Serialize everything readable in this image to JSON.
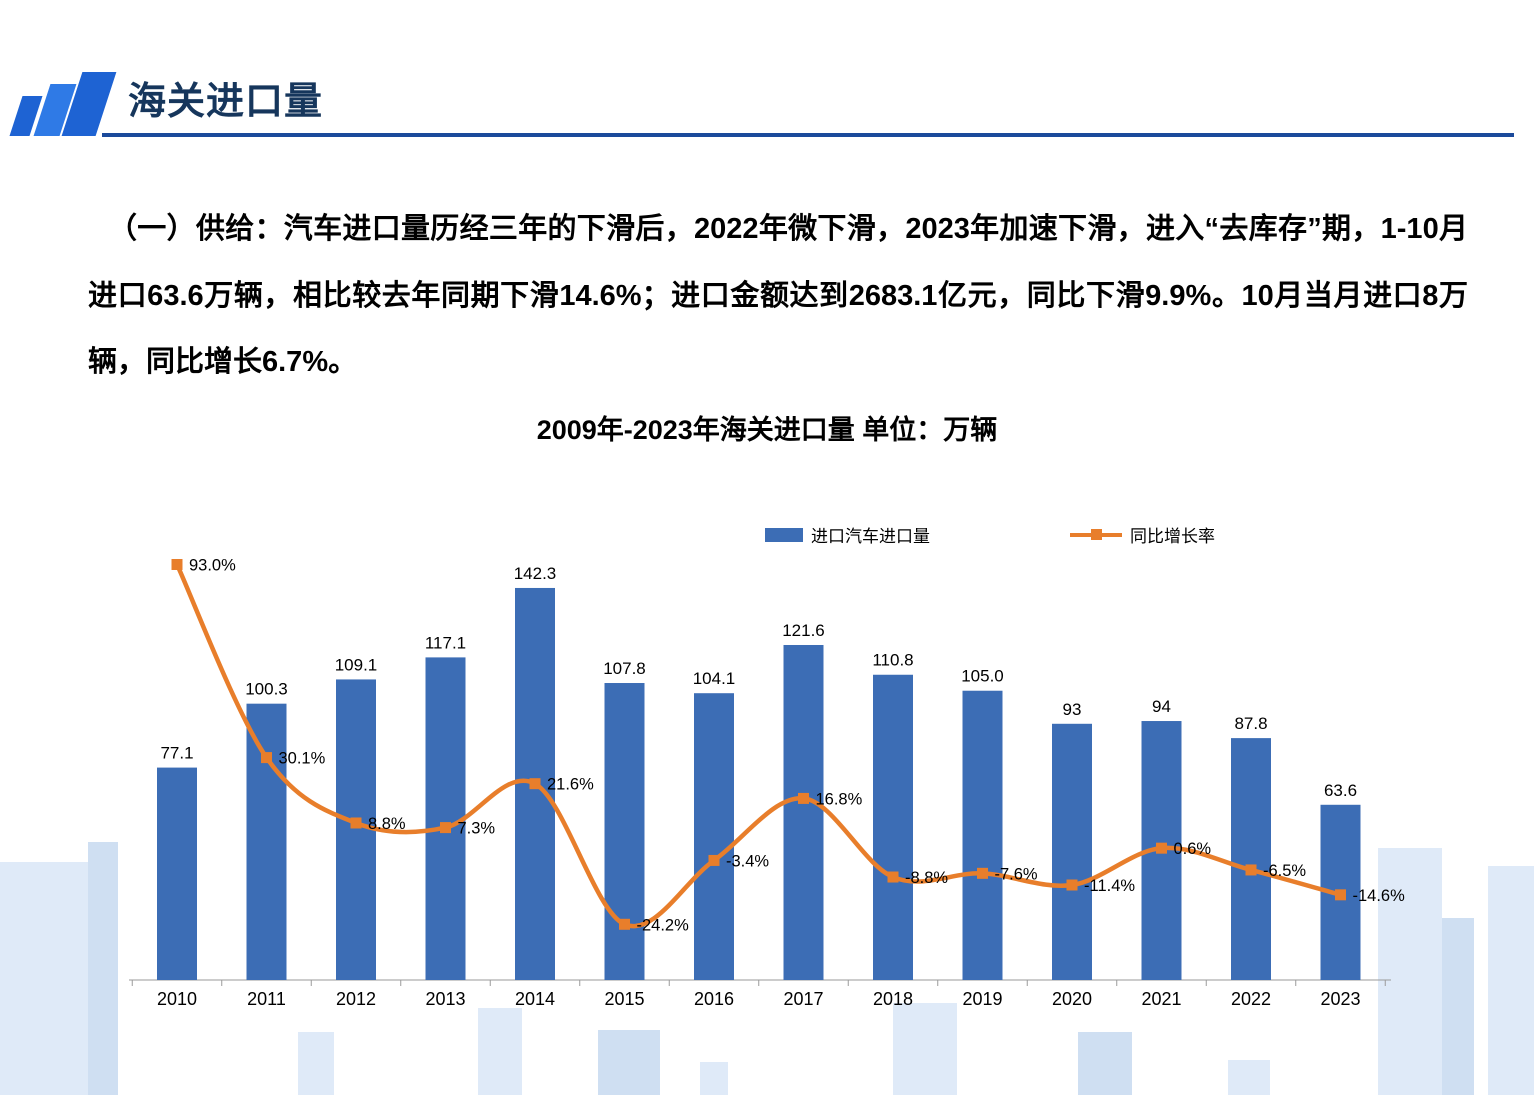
{
  "header": {
    "title": "海关进口量"
  },
  "body_text": "（一）供给：汽车进口量历经三年的下滑后，2022年微下滑，2023年加速下滑，进入“去库存”期，1-10月进口63.6万辆，相比较去年同期下滑14.6%；进口金额达到2683.1亿元，同比下滑9.9%。10月当月进口8万辆，同比增长6.7%。",
  "chart_title": "2009年-2023年海关进口量  单位：万辆",
  "legend": {
    "bar_label": "进口汽车进口量",
    "line_label": "同比增长率"
  },
  "chart_data": {
    "type": "bar",
    "combo": "bar+line",
    "title": "2009年-2023年海关进口量 单位：万辆",
    "unit": "万辆",
    "categories": [
      "2010",
      "2011",
      "2012",
      "2013",
      "2014",
      "2015",
      "2016",
      "2017",
      "2018",
      "2019",
      "2020",
      "2021",
      "2022",
      "2023"
    ],
    "series": [
      {
        "name": "进口汽车进口量",
        "type": "bar",
        "color": "#3C6DB5",
        "values": [
          77.1,
          100.3,
          109.1,
          117.1,
          142.3,
          107.8,
          104.1,
          121.6,
          110.8,
          105.0,
          93,
          94,
          87.8,
          63.6
        ],
        "labels": [
          "77.1",
          "100.3",
          "109.1",
          "117.1",
          "142.3",
          "107.8",
          "104.1",
          "121.6",
          "110.8",
          "105.0",
          "93",
          "94",
          "87.8",
          "63.6"
        ]
      },
      {
        "name": "同比增长率",
        "type": "line",
        "color": "#E87E2B",
        "values": [
          93.0,
          30.1,
          8.8,
          7.3,
          21.6,
          -24.2,
          -3.4,
          16.8,
          -8.8,
          -7.6,
          -11.4,
          0.6,
          -6.5,
          -14.6
        ],
        "labels": [
          "93.0%",
          "30.1%",
          "8.8%",
          "7.3%",
          "21.6%",
          "-24.2%",
          "-3.4%",
          "16.8%",
          "-8.8%",
          "-7.6%",
          "-11.4%",
          "0.6%",
          "-6.5%",
          "-14.6%"
        ]
      }
    ],
    "ylim_bars": [
      0,
      160
    ],
    "ylim_line_pct": [
      -40,
      100
    ],
    "grid": false,
    "legend_position": "top"
  }
}
